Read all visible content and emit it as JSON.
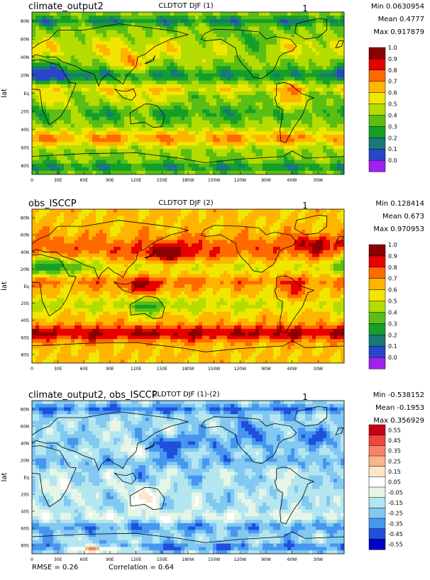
{
  "panels": [
    {
      "left_title": "climate_output2",
      "center_title": "CLDTOT DJF (1)",
      "right_label": "1",
      "stats": [
        "Min 0.0630954",
        "Mean 0.4777",
        "Max 0.917879"
      ],
      "colorbar": {
        "labels": [
          "1.0",
          "0.9",
          "0.8",
          "0.7",
          "0.6",
          "0.5",
          "0.4",
          "0.3",
          "0.2",
          "0.1",
          "0.0"
        ],
        "colors": [
          "#8b0000",
          "#e60000",
          "#ff6a00",
          "#ffb400",
          "#f0e600",
          "#b4dc00",
          "#5abe14",
          "#14a028",
          "#197878",
          "#2846c8",
          "#a020f0"
        ]
      },
      "field": "model"
    },
    {
      "left_title": "obs_ISCCP",
      "center_title": "CLDTOT DJF (2)",
      "right_label": "1",
      "stats": [
        "Min 0.128414",
        "Mean 0.673",
        "Max 0.970953"
      ],
      "colorbar": {
        "labels": [
          "1.0",
          "0.9",
          "0.8",
          "0.7",
          "0.6",
          "0.5",
          "0.4",
          "0.3",
          "0.2",
          "0.1",
          "0.0"
        ],
        "colors": [
          "#8b0000",
          "#e60000",
          "#ff6a00",
          "#ffb400",
          "#f0e600",
          "#b4dc00",
          "#5abe14",
          "#14a028",
          "#197878",
          "#2846c8",
          "#a020f0"
        ]
      },
      "field": "obs"
    },
    {
      "left_title": "climate_output2, obs_ISCCP",
      "center_title": "CLDTOT DJF (1)-(2)",
      "right_label": "1",
      "stats": [
        "Min -0.538152",
        "Mean -0.1953",
        "Max 0.356929"
      ],
      "colorbar": {
        "labels": [
          "0.55",
          "0.45",
          "0.35",
          "0.25",
          "0.15",
          "0.05",
          "-0.05",
          "-0.15",
          "-0.25",
          "-0.35",
          "-0.45",
          "-0.55"
        ],
        "colors": [
          "#c80014",
          "#f0463c",
          "#fa8264",
          "#fcb48c",
          "#fde6c8",
          "#ffffff",
          "#e6f5e6",
          "#b4e6f0",
          "#82c8f0",
          "#4696f0",
          "#1e50dc",
          "#0000c8"
        ]
      },
      "field": "diff",
      "footer_left": "RMSE = 0.26",
      "footer_center": "Correlation = 0.64"
    }
  ],
  "chart_data": [
    {
      "type": "heatmap",
      "title": "CLDTOT DJF (1)",
      "ylabel": "lat",
      "x_ticks": [
        "0",
        "30E",
        "60E",
        "90E",
        "120E",
        "150E",
        "180W",
        "150W",
        "120W",
        "90W",
        "60W",
        "30W"
      ],
      "y_ticks": [
        "80N",
        "60N",
        "40N",
        "20N",
        "Eq",
        "20S",
        "40S",
        "60S",
        "80S"
      ],
      "xlim": [
        0,
        360
      ],
      "ylim": [
        -90,
        90
      ],
      "levels": [
        0.0,
        0.1,
        0.2,
        0.3,
        0.4,
        0.5,
        0.6,
        0.7,
        0.8,
        0.9,
        1.0
      ],
      "min": 0.0630954,
      "mean": 0.4777,
      "max": 0.917879
    },
    {
      "type": "heatmap",
      "title": "CLDTOT DJF (2)",
      "ylabel": "lat",
      "x_ticks": [
        "0",
        "30E",
        "60E",
        "90E",
        "120E",
        "150E",
        "180W",
        "150W",
        "120W",
        "90W",
        "60W",
        "30W"
      ],
      "y_ticks": [
        "80N",
        "60N",
        "40N",
        "20N",
        "Eq",
        "20S",
        "40S",
        "60S",
        "80S"
      ],
      "xlim": [
        0,
        360
      ],
      "ylim": [
        -90,
        90
      ],
      "levels": [
        0.0,
        0.1,
        0.2,
        0.3,
        0.4,
        0.5,
        0.6,
        0.7,
        0.8,
        0.9,
        1.0
      ],
      "min": 0.128414,
      "mean": 0.673,
      "max": 0.970953
    },
    {
      "type": "heatmap",
      "title": "CLDTOT DJF (1)-(2)",
      "ylabel": "lat",
      "x_ticks": [
        "0",
        "30E",
        "60E",
        "90E",
        "120E",
        "150E",
        "180W",
        "150W",
        "120W",
        "90W",
        "60W",
        "30W"
      ],
      "y_ticks": [
        "80N",
        "60N",
        "40N",
        "20N",
        "Eq",
        "20S",
        "40S",
        "60S",
        "80S"
      ],
      "xlim": [
        0,
        360
      ],
      "ylim": [
        -90,
        90
      ],
      "levels": [
        -0.55,
        -0.45,
        -0.35,
        -0.25,
        -0.15,
        -0.05,
        0.05,
        0.15,
        0.25,
        0.35,
        0.45,
        0.55
      ],
      "min": -0.538152,
      "mean": -0.1953,
      "max": 0.356929,
      "rmse": 0.26,
      "correlation": 0.64
    }
  ]
}
